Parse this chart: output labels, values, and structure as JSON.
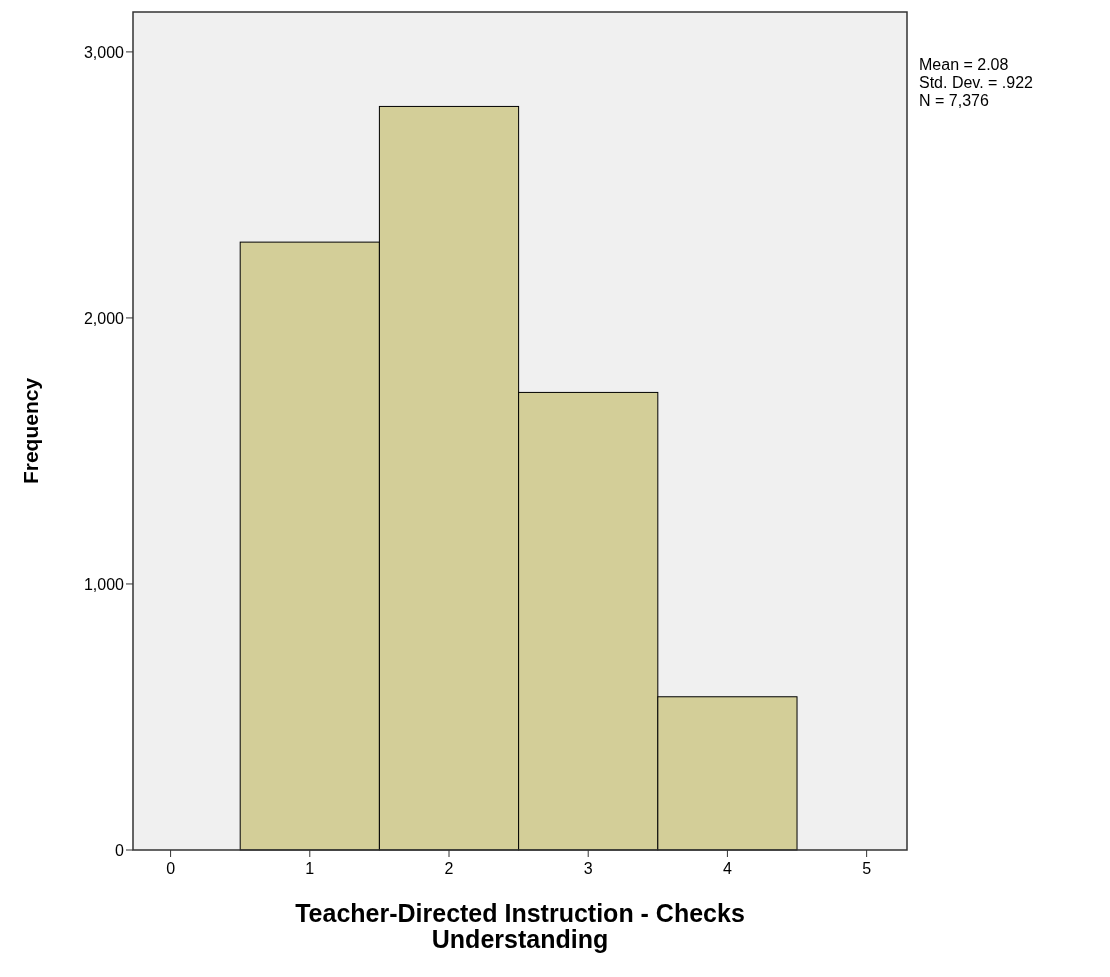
{
  "chart_data": {
    "type": "histogram",
    "xlabel": "Teacher-Directed Instruction - Checks Understanding",
    "ylabel": "Frequency",
    "bins": [
      0.5,
      1.5,
      2.5,
      3.5,
      4.5
    ],
    "values": [
      2285,
      2795,
      1720,
      576
    ],
    "color": "#d3ce98",
    "xlim": [
      -0.27,
      5.29
    ],
    "xticks": [
      0,
      1,
      2,
      3,
      4,
      5
    ],
    "ylim": [
      0,
      3150
    ],
    "yticks": [
      0,
      {
        "value": 1000,
        "label": "1,000"
      },
      {
        "value": 2000,
        "label": "2,000"
      },
      {
        "value": 3000,
        "label": "3,000"
      }
    ],
    "grid": false,
    "annotations": [
      "Mean = 2.08",
      "Std. Dev. = .922",
      "N = 7,376"
    ]
  }
}
